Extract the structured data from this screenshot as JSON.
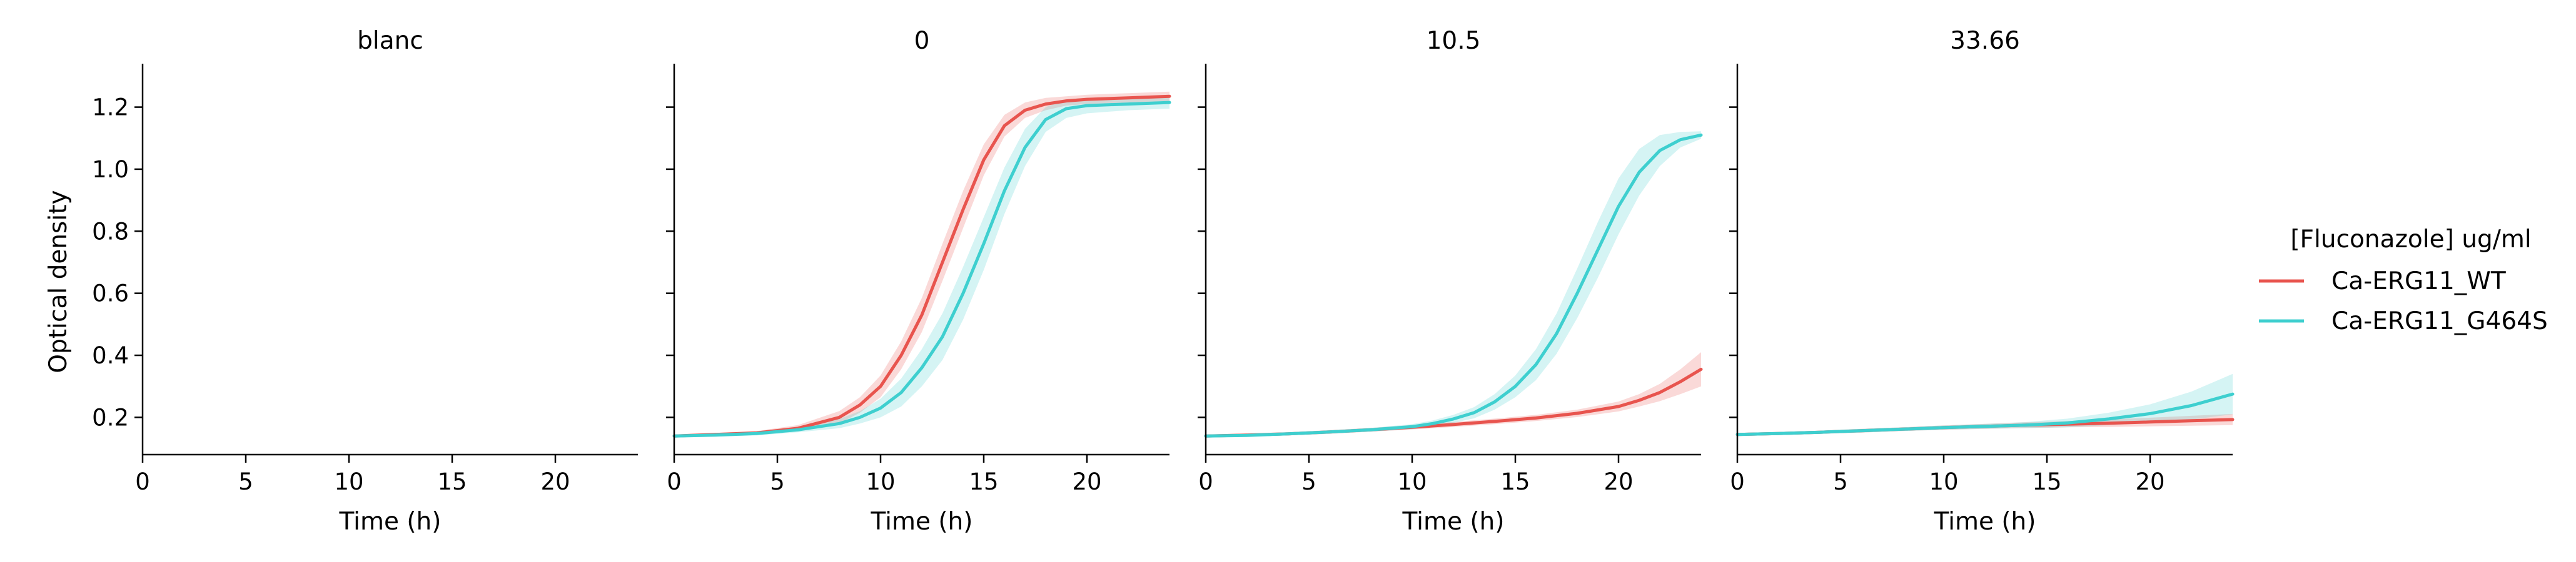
{
  "legend": {
    "title": "[Fluconazole] ug/ml",
    "placement": "right",
    "entries": [
      {
        "name": "Ca-ERG11_WT",
        "color": "#e8544e"
      },
      {
        "name": "Ca-ERG11_G464S",
        "color": "#3ecfcf"
      }
    ]
  },
  "chart_data": [
    {
      "type": "line",
      "title": "blanc",
      "xlabel": "Time (h)",
      "ylabel": "Optical density",
      "xlim": [
        0,
        24
      ],
      "ylim": [
        0.08,
        1.34
      ],
      "xticks": [
        0,
        5,
        10,
        15,
        20
      ],
      "yticks": [
        0.2,
        0.4,
        0.6,
        0.8,
        1.0,
        1.2
      ],
      "grid": false,
      "series": []
    },
    {
      "type": "line",
      "title": "0",
      "xlabel": "Time (h)",
      "ylabel": "",
      "xlim": [
        0,
        24
      ],
      "ylim": [
        0.08,
        1.34
      ],
      "xticks": [
        0,
        5,
        10,
        15,
        20
      ],
      "yticks": [
        0.2,
        0.4,
        0.6,
        0.8,
        1.0,
        1.2
      ],
      "grid": false,
      "series": [
        {
          "name": "Ca-ERG11_WT",
          "color": "#e8544e",
          "x": [
            0,
            2,
            4,
            6,
            8,
            9,
            10,
            11,
            12,
            13,
            14,
            15,
            16,
            17,
            18,
            19,
            20,
            22,
            24
          ],
          "y": [
            0.14,
            0.145,
            0.15,
            0.165,
            0.2,
            0.24,
            0.3,
            0.4,
            0.53,
            0.7,
            0.87,
            1.03,
            1.14,
            1.19,
            1.21,
            1.22,
            1.225,
            1.23,
            1.235
          ],
          "band": [
            0.005,
            0.005,
            0.006,
            0.01,
            0.02,
            0.025,
            0.035,
            0.045,
            0.055,
            0.06,
            0.06,
            0.05,
            0.035,
            0.025,
            0.02,
            0.015,
            0.015,
            0.015,
            0.015
          ]
        },
        {
          "name": "Ca-ERG11_G464S",
          "color": "#3ecfcf",
          "x": [
            0,
            2,
            4,
            6,
            8,
            9,
            10,
            11,
            12,
            13,
            14,
            15,
            16,
            17,
            18,
            19,
            20,
            22,
            24
          ],
          "y": [
            0.14,
            0.143,
            0.148,
            0.16,
            0.18,
            0.2,
            0.23,
            0.28,
            0.36,
            0.46,
            0.6,
            0.76,
            0.93,
            1.07,
            1.16,
            1.195,
            1.205,
            1.21,
            1.215
          ],
          "band": [
            0.005,
            0.005,
            0.006,
            0.008,
            0.015,
            0.02,
            0.03,
            0.045,
            0.06,
            0.075,
            0.085,
            0.085,
            0.075,
            0.06,
            0.04,
            0.03,
            0.025,
            0.02,
            0.02
          ]
        }
      ]
    },
    {
      "type": "line",
      "title": "10.5",
      "xlabel": "Time (h)",
      "ylabel": "",
      "xlim": [
        0,
        24
      ],
      "ylim": [
        0.08,
        1.34
      ],
      "xticks": [
        0,
        5,
        10,
        15,
        20
      ],
      "yticks": [
        0.2,
        0.4,
        0.6,
        0.8,
        1.0,
        1.2
      ],
      "grid": false,
      "series": [
        {
          "name": "Ca-ERG11_WT",
          "color": "#e8544e",
          "x": [
            0,
            2,
            4,
            6,
            8,
            10,
            12,
            14,
            16,
            18,
            20,
            21,
            22,
            23,
            24
          ],
          "y": [
            0.14,
            0.143,
            0.147,
            0.153,
            0.16,
            0.168,
            0.177,
            0.187,
            0.198,
            0.213,
            0.235,
            0.255,
            0.28,
            0.315,
            0.355
          ],
          "band": [
            0.005,
            0.005,
            0.005,
            0.006,
            0.006,
            0.007,
            0.008,
            0.009,
            0.01,
            0.012,
            0.016,
            0.02,
            0.028,
            0.04,
            0.055
          ]
        },
        {
          "name": "Ca-ERG11_G464S",
          "color": "#3ecfcf",
          "x": [
            0,
            2,
            4,
            6,
            8,
            10,
            11,
            12,
            13,
            14,
            15,
            16,
            17,
            18,
            19,
            20,
            21,
            22,
            23,
            24
          ],
          "y": [
            0.14,
            0.142,
            0.147,
            0.153,
            0.16,
            0.17,
            0.18,
            0.195,
            0.215,
            0.25,
            0.3,
            0.37,
            0.47,
            0.6,
            0.74,
            0.88,
            0.99,
            1.06,
            1.095,
            1.11
          ],
          "band": [
            0.004,
            0.004,
            0.005,
            0.005,
            0.006,
            0.008,
            0.01,
            0.013,
            0.018,
            0.025,
            0.035,
            0.05,
            0.065,
            0.08,
            0.09,
            0.09,
            0.075,
            0.05,
            0.025,
            0.012
          ]
        }
      ]
    },
    {
      "type": "line",
      "title": "33.66",
      "xlabel": "Time (h)",
      "ylabel": "",
      "xlim": [
        0,
        24
      ],
      "ylim": [
        0.08,
        1.34
      ],
      "xticks": [
        0,
        5,
        10,
        15,
        20
      ],
      "yticks": [
        0.2,
        0.4,
        0.6,
        0.8,
        1.0,
        1.2
      ],
      "grid": false,
      "series": [
        {
          "name": "Ca-ERG11_WT",
          "color": "#e8544e",
          "x": [
            0,
            2,
            4,
            6,
            8,
            10,
            12,
            14,
            16,
            18,
            20,
            22,
            24
          ],
          "y": [
            0.145,
            0.148,
            0.152,
            0.157,
            0.162,
            0.167,
            0.171,
            0.175,
            0.178,
            0.181,
            0.185,
            0.189,
            0.193
          ],
          "band": [
            0.005,
            0.005,
            0.005,
            0.006,
            0.006,
            0.007,
            0.008,
            0.009,
            0.01,
            0.012,
            0.014,
            0.016,
            0.018
          ]
        },
        {
          "name": "Ca-ERG11_G464S",
          "color": "#3ecfcf",
          "x": [
            0,
            2,
            4,
            6,
            8,
            10,
            12,
            14,
            16,
            18,
            20,
            22,
            24
          ],
          "y": [
            0.145,
            0.148,
            0.152,
            0.157,
            0.162,
            0.167,
            0.171,
            0.175,
            0.182,
            0.195,
            0.212,
            0.238,
            0.275
          ],
          "band": [
            0.005,
            0.005,
            0.005,
            0.006,
            0.006,
            0.007,
            0.008,
            0.01,
            0.014,
            0.02,
            0.03,
            0.045,
            0.065
          ]
        }
      ]
    }
  ]
}
